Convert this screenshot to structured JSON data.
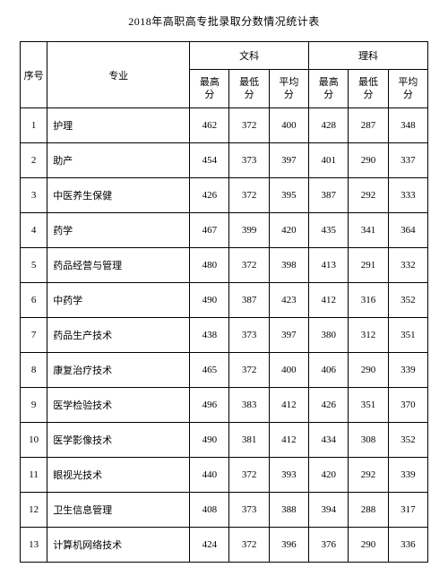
{
  "title": "2018年高职高专批录取分数情况统计表",
  "headers": {
    "index": "序号",
    "major": "专业",
    "liberal": "文科",
    "science": "理科",
    "max": "最高分",
    "min": "最低分",
    "avg": "平均分"
  },
  "rows": [
    {
      "idx": "1",
      "major": "护理",
      "lmax": "462",
      "lmin": "372",
      "lavg": "400",
      "smax": "428",
      "smin": "287",
      "savg": "348"
    },
    {
      "idx": "2",
      "major": "助产",
      "lmax": "454",
      "lmin": "373",
      "lavg": "397",
      "smax": "401",
      "smin": "290",
      "savg": "337"
    },
    {
      "idx": "3",
      "major": "中医养生保健",
      "lmax": "426",
      "lmin": "372",
      "lavg": "395",
      "smax": "387",
      "smin": "292",
      "savg": "333"
    },
    {
      "idx": "4",
      "major": "药学",
      "lmax": "467",
      "lmin": "399",
      "lavg": "420",
      "smax": "435",
      "smin": "341",
      "savg": "364"
    },
    {
      "idx": "5",
      "major": "药品经营与管理",
      "lmax": "480",
      "lmin": "372",
      "lavg": "398",
      "smax": "413",
      "smin": "291",
      "savg": "332"
    },
    {
      "idx": "6",
      "major": "中药学",
      "lmax": "490",
      "lmin": "387",
      "lavg": "423",
      "smax": "412",
      "smin": "316",
      "savg": "352"
    },
    {
      "idx": "7",
      "major": "药品生产技术",
      "lmax": "438",
      "lmin": "373",
      "lavg": "397",
      "smax": "380",
      "smin": "312",
      "savg": "351"
    },
    {
      "idx": "8",
      "major": "康复治疗技术",
      "lmax": "465",
      "lmin": "372",
      "lavg": "400",
      "smax": "406",
      "smin": "290",
      "savg": "339"
    },
    {
      "idx": "9",
      "major": "医学检验技术",
      "lmax": "496",
      "lmin": "383",
      "lavg": "412",
      "smax": "426",
      "smin": "351",
      "savg": "370"
    },
    {
      "idx": "10",
      "major": "医学影像技术",
      "lmax": "490",
      "lmin": "381",
      "lavg": "412",
      "smax": "434",
      "smin": "308",
      "savg": "352"
    },
    {
      "idx": "11",
      "major": "眼视光技术",
      "lmax": "440",
      "lmin": "372",
      "lavg": "393",
      "smax": "420",
      "smin": "292",
      "savg": "339"
    },
    {
      "idx": "12",
      "major": "卫生信息管理",
      "lmax": "408",
      "lmin": "373",
      "lavg": "388",
      "smax": "394",
      "smin": "288",
      "savg": "317"
    },
    {
      "idx": "13",
      "major": "计算机网络技术",
      "lmax": "424",
      "lmin": "372",
      "lavg": "396",
      "smax": "376",
      "smin": "290",
      "savg": "336"
    }
  ]
}
